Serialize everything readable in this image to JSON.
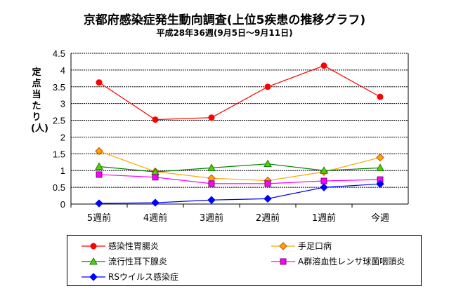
{
  "chart_data": {
    "type": "line",
    "title": "京都府感染症発生動向調査(上位5疾患の推移グラフ)",
    "subtitle": "平成28年36週(9月5日～9月11日)",
    "ylabel": "定点当たり(人)",
    "xlabel": "",
    "ylim": [
      0,
      4.5
    ],
    "yticks": [
      "0",
      "0.5",
      "1",
      "1.5",
      "2",
      "2.5",
      "3",
      "3.5",
      "4",
      "4.5"
    ],
    "categories": [
      "5週前",
      "4週前",
      "3週前",
      "2週前",
      "1週前",
      "今週"
    ],
    "grid": true,
    "legend_position": "bottom",
    "series": [
      {
        "name": "感染性胃腸炎",
        "color": "#ff0000",
        "marker": "circle",
        "values": [
          3.63,
          2.52,
          2.58,
          3.5,
          4.13,
          3.2
        ]
      },
      {
        "name": "手足口病",
        "color": "#ffa500",
        "marker": "diamond",
        "values": [
          1.58,
          0.97,
          0.77,
          0.7,
          0.96,
          1.39
        ]
      },
      {
        "name": "流行性耳下腺炎",
        "color": "#008000",
        "marker": "triangle",
        "values": [
          1.12,
          0.96,
          1.08,
          1.2,
          1.0,
          1.08
        ]
      },
      {
        "name": "A群溶血性レンサ球菌咽頭炎",
        "color": "#ff00ff",
        "marker": "square",
        "values": [
          0.88,
          0.8,
          0.61,
          0.61,
          0.69,
          0.73
        ]
      },
      {
        "name": "RSウイルス感染症",
        "color": "#0000ff",
        "marker": "diamond",
        "values": [
          0.02,
          0.04,
          0.12,
          0.16,
          0.5,
          0.6
        ]
      }
    ]
  }
}
